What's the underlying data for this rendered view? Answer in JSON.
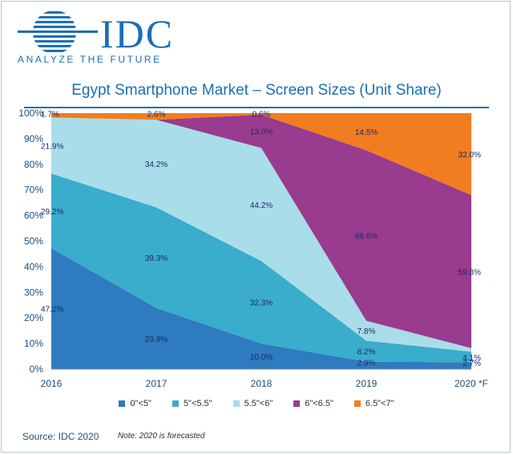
{
  "logo": {
    "text": "IDC",
    "tagline": "ANALYZE THE FUTURE"
  },
  "title": "Egypt Smartphone Market – Screen Sizes (Unit Share)",
  "source": "Source: IDC 2020",
  "note": "Note: 2020 is forecasted",
  "colors": {
    "brand": "#1a6fb3",
    "lt5": "#2e7bbf",
    "5to55": "#3aaccc",
    "55to6": "#a9dde9",
    "6to65": "#993b8e",
    "65to7": "#f17d20"
  },
  "chart_data": {
    "type": "area",
    "stacked": true,
    "title": "Egypt Smartphone Market – Screen Sizes (Unit Share)",
    "categories": [
      "2016",
      "2017",
      "2018",
      "2019",
      "2020 *F"
    ],
    "ylim": [
      0,
      100
    ],
    "yticks": [
      "0%",
      "10%",
      "20%",
      "30%",
      "40%",
      "50%",
      "60%",
      "70%",
      "80%",
      "90%",
      "100%"
    ],
    "series": [
      {
        "name": "0\"<5\"",
        "key": "lt5",
        "values": [
          47.2,
          23.9,
          10.0,
          2.9,
          2.7
        ],
        "labels": [
          "47.2%",
          "23.9%",
          "10.0%",
          "2.9%",
          "2.7%"
        ]
      },
      {
        "name": "5\"<5.5\"",
        "key": "5to55",
        "values": [
          29.2,
          39.3,
          32.3,
          8.2,
          4.1
        ],
        "labels": [
          "29.2%",
          "39.3%",
          "32.3%",
          "8.2%",
          "4.1%"
        ]
      },
      {
        "name": "5.5\"<6\"",
        "key": "55to6",
        "values": [
          21.9,
          34.2,
          44.2,
          7.8,
          1.4
        ],
        "labels": [
          "21.9%",
          "34.2%",
          "44.2%",
          "7.8%",
          ""
        ]
      },
      {
        "name": "6\"<6.5\"",
        "key": "6to65",
        "values": [
          0.0,
          0.0,
          13.0,
          66.6,
          59.8
        ],
        "labels": [
          "",
          "",
          "13.0%",
          "66.6%",
          "59.8%"
        ]
      },
      {
        "name": "6.5\"<7\"",
        "key": "65to7",
        "values": [
          1.7,
          2.6,
          0.6,
          14.5,
          32.0
        ],
        "labels": [
          "1.7%",
          "2.6%",
          "0.6%",
          "14.5%",
          "32.0%"
        ]
      }
    ]
  }
}
